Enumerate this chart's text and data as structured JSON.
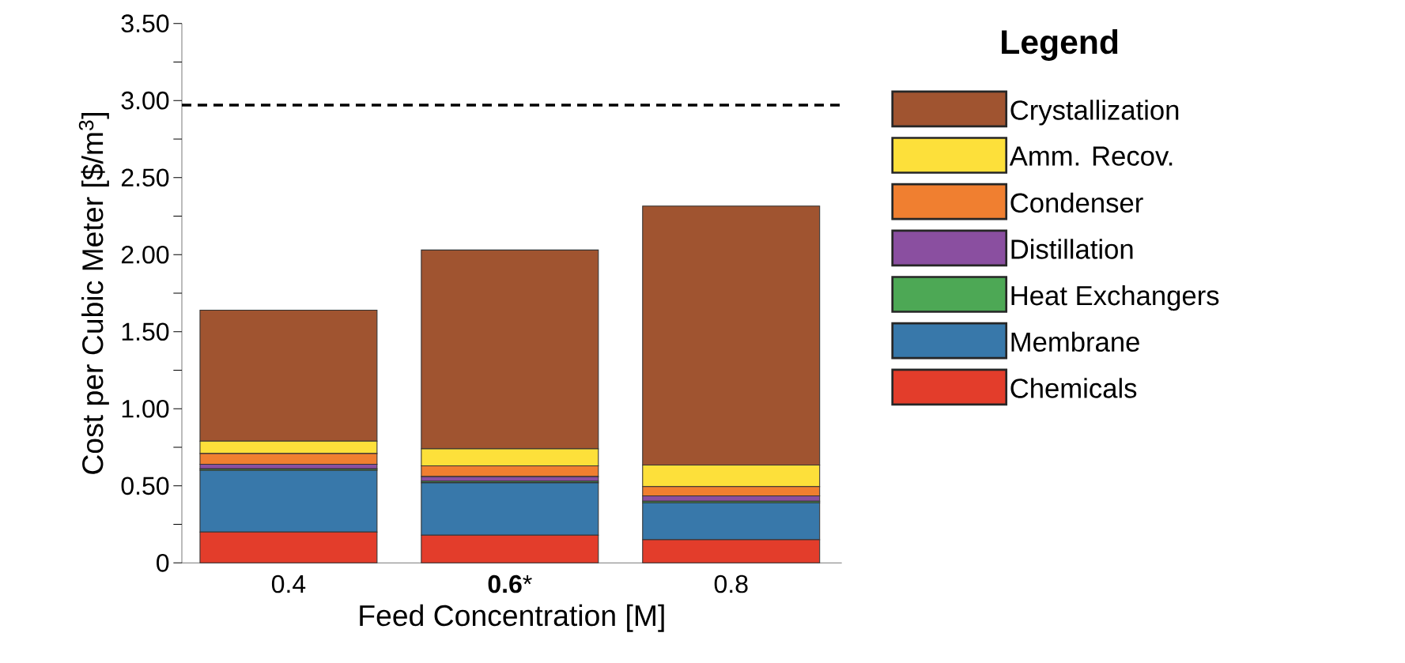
{
  "chart_data": {
    "type": "bar",
    "stacked": true,
    "xlabel": "Feed Concentration [M]",
    "ylabel": "Cost per Cubic Meter [$/m$^{3}$]",
    "legend_title": "Legend",
    "legend": "right",
    "categories": [
      "0.4",
      "**0.6***",
      "0.8"
    ],
    "ylim": [
      0,
      3.5
    ],
    "yticks": [
      {
        "value": 0,
        "label": "0"
      },
      {
        "value": 0.25,
        "label": null
      },
      {
        "value": 0.5,
        "label": "0.50"
      },
      {
        "value": 0.75,
        "label": null
      },
      {
        "value": 1.0,
        "label": "1.00"
      },
      {
        "value": 1.25,
        "label": null
      },
      {
        "value": 1.5,
        "label": "1.50"
      },
      {
        "value": 1.75,
        "label": null
      },
      {
        "value": 2.0,
        "label": "2.00"
      },
      {
        "value": 2.25,
        "label": null
      },
      {
        "value": 2.5,
        "label": "2.50"
      },
      {
        "value": 2.75,
        "label": null
      },
      {
        "value": 3.0,
        "label": "3.00"
      },
      {
        "value": 3.25,
        "label": null
      },
      {
        "value": 3.5,
        "label": "3.50"
      }
    ],
    "series": [
      {
        "name": "Chemicals",
        "color": "#e33d2b",
        "values": [
          0.2,
          0.18,
          0.15
        ]
      },
      {
        "name": "Membrane",
        "color": "#3878aa",
        "values": [
          0.4,
          0.34,
          0.24
        ]
      },
      {
        "name": "Heat Exchangers",
        "color": "#4da855",
        "values": [
          0.01,
          0.01,
          0.01
        ]
      },
      {
        "name": "Distillation",
        "color": "#8a4fa0",
        "values": [
          0.03,
          0.03,
          0.035
        ]
      },
      {
        "name": "Condenser",
        "color": "#f07f30",
        "values": [
          0.07,
          0.07,
          0.06
        ]
      },
      {
        "name": "Amm. Recov.",
        "color": "#fde03a",
        "values": [
          0.08,
          0.11,
          0.14
        ]
      },
      {
        "name": "Crystallization",
        "color": "#a05430",
        "values": [
          0.85,
          1.29,
          1.68
        ]
      }
    ],
    "ref_lines": [
      {
        "axis": "y",
        "value": 2.97,
        "color": "#000000",
        "line_style": "dashed"
      }
    ]
  }
}
